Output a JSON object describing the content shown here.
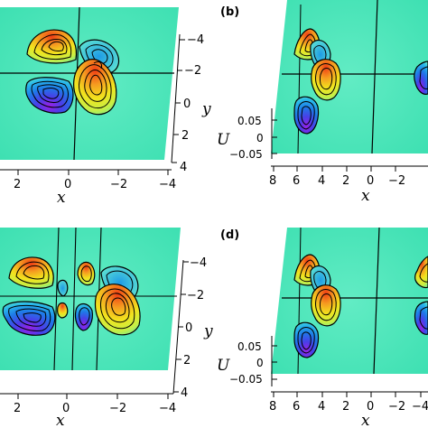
{
  "figure": {
    "panels": [
      {
        "id": "a",
        "label": "",
        "x_label": "x",
        "y_label": "y",
        "u_label": "",
        "x_ticks": [
          "2",
          "0",
          "−2",
          "−4"
        ],
        "y_ticks": [
          "−4",
          "−2",
          "0",
          "2",
          "4"
        ],
        "u_ticks": []
      },
      {
        "id": "b",
        "label": "(b)",
        "x_label": "x",
        "y_label": "",
        "u_label": "U",
        "x_ticks": [
          "8",
          "6",
          "4",
          "2",
          "0",
          "−2"
        ],
        "y_ticks": [],
        "u_ticks": [
          "0.05",
          "0",
          "−0.05"
        ]
      },
      {
        "id": "c",
        "label": "",
        "x_label": "x",
        "y_label": "y",
        "u_label": "",
        "x_ticks": [
          "2",
          "0",
          "−2",
          "−4"
        ],
        "y_ticks": [
          "−4",
          "−2",
          "0",
          "2",
          "4"
        ],
        "u_ticks": []
      },
      {
        "id": "d",
        "label": "(d)",
        "x_label": "x",
        "y_label": "",
        "u_label": "U",
        "x_ticks": [
          "8",
          "6",
          "4",
          "2",
          "0",
          "−2",
          "−4"
        ],
        "y_ticks": [],
        "u_ticks": [
          "0.05",
          "0",
          "−0.05"
        ]
      }
    ],
    "colors": {
      "background_field": "#3ee6b4",
      "positive_peak": "#f04a1a",
      "positive_mid": "#f2e020",
      "negative_peak": "#8a2be2",
      "negative_mid": "#1e64e6",
      "contour": "#000000"
    }
  }
}
